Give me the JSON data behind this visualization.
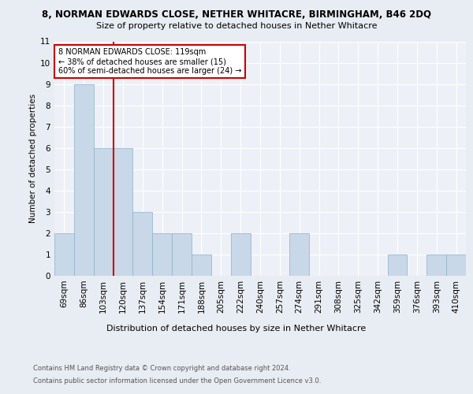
{
  "title_line1": "8, NORMAN EDWARDS CLOSE, NETHER WHITACRE, BIRMINGHAM, B46 2DQ",
  "title_line2": "Size of property relative to detached houses in Nether Whitacre",
  "xlabel": "Distribution of detached houses by size in Nether Whitacre",
  "ylabel": "Number of detached properties",
  "categories": [
    "69sqm",
    "86sqm",
    "103sqm",
    "120sqm",
    "137sqm",
    "154sqm",
    "171sqm",
    "188sqm",
    "205sqm",
    "222sqm",
    "240sqm",
    "257sqm",
    "274sqm",
    "291sqm",
    "308sqm",
    "325sqm",
    "342sqm",
    "359sqm",
    "376sqm",
    "393sqm",
    "410sqm"
  ],
  "values": [
    2,
    9,
    6,
    6,
    3,
    2,
    2,
    1,
    0,
    2,
    0,
    0,
    2,
    0,
    0,
    0,
    0,
    1,
    0,
    1,
    1
  ],
  "bar_color": "#c8d8e8",
  "bar_edge_color": "#8ab0c8",
  "vline_position": 2.5,
  "vline_color": "#cc0000",
  "annotation_text": "8 NORMAN EDWARDS CLOSE: 119sqm\n← 38% of detached houses are smaller (15)\n60% of semi-detached houses are larger (24) →",
  "annotation_box_facecolor": "#ffffff",
  "annotation_box_edgecolor": "#cc0000",
  "ylim": [
    0,
    11
  ],
  "yticks": [
    0,
    1,
    2,
    3,
    4,
    5,
    6,
    7,
    8,
    9,
    10,
    11
  ],
  "background_color": "#e8edf3",
  "plot_background_color": "#edf1f7",
  "grid_color": "#ffffff",
  "title1_fontsize": 8.5,
  "title2_fontsize": 8,
  "ylabel_fontsize": 7.5,
  "xlabel_fontsize": 8,
  "tick_fontsize": 7.5,
  "annot_fontsize": 7,
  "footer_fontsize": 6,
  "footer_line1": "Contains HM Land Registry data © Crown copyright and database right 2024.",
  "footer_line2": "Contains public sector information licensed under the Open Government Licence v3.0."
}
